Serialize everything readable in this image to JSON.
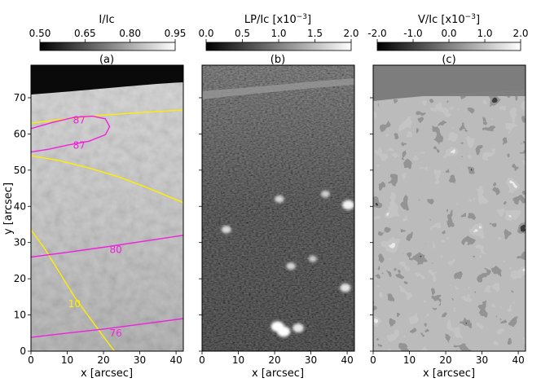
{
  "chart_data": [
    {
      "type": "heatmap",
      "panel_label": "(a)",
      "colorbar": {
        "label": "I/Ic",
        "ticks": [
          "0.50",
          "0.65",
          "0.80",
          "0.95"
        ],
        "range": [
          0.5,
          0.95
        ],
        "cmap": "gray"
      },
      "xlabel": "x [arcsec]",
      "ylabel": "y [arcsec]",
      "xlim": [
        0,
        42
      ],
      "ylim": [
        0,
        79
      ],
      "xticks": [
        0,
        10,
        20,
        30,
        40
      ],
      "yticks": [
        0,
        10,
        20,
        30,
        40,
        50,
        60,
        70
      ],
      "contours": [
        {
          "color": "#ffee00",
          "points": [
            [
              0,
              63
            ],
            [
              10,
              64.2
            ],
            [
              20,
              65.2
            ],
            [
              30,
              65.9
            ],
            [
              42,
              66.6
            ]
          ]
        },
        {
          "color": "#ffee00",
          "points": [
            [
              0,
              54
            ],
            [
              8,
              52.6
            ],
            [
              16,
              50.6
            ],
            [
              24,
              48.2
            ],
            [
              32,
              45.2
            ],
            [
              42,
              41
            ]
          ]
        },
        {
          "color": "#ffee00",
          "points": [
            [
              0,
              33.5
            ],
            [
              4,
              28
            ],
            [
              8,
              21.5
            ],
            [
              12,
              15
            ],
            [
              16,
              9.5
            ],
            [
              20,
              4
            ],
            [
              23,
              0
            ]
          ]
        },
        {
          "color": "#ee22dd",
          "points": [
            [
              0,
              61.5
            ],
            [
              6,
              63.2
            ],
            [
              12,
              64.6
            ],
            [
              17,
              64.9
            ],
            [
              20.5,
              64.2
            ],
            [
              21.7,
              62
            ],
            [
              20.5,
              59.8
            ],
            [
              16,
              58
            ],
            [
              10,
              56.9
            ],
            [
              5,
              55.8
            ],
            [
              0,
              55
            ]
          ]
        },
        {
          "color": "#ee22dd",
          "points": [
            [
              0,
              26
            ],
            [
              10,
              27.3
            ],
            [
              20,
              28.7
            ],
            [
              30,
              30.2
            ],
            [
              42,
              32
            ]
          ]
        },
        {
          "color": "#ee22dd",
          "points": [
            [
              0,
              3.8
            ],
            [
              10,
              5
            ],
            [
              20,
              6.1
            ],
            [
              30,
              7.4
            ],
            [
              42,
              9
            ]
          ]
        }
      ],
      "contour_labels": [
        {
          "text": "87",
          "x": 13.3,
          "y": 63.8,
          "color": "#ee22dd"
        },
        {
          "text": "87",
          "x": 13.3,
          "y": 56.8,
          "color": "#ee22dd"
        },
        {
          "text": "80",
          "x": 23.4,
          "y": 28,
          "color": "#ee22dd"
        },
        {
          "text": "76",
          "x": 23.4,
          "y": 5,
          "color": "#ee22dd"
        },
        {
          "text": "10",
          "x": 12,
          "y": 13,
          "color": "#ffee00"
        }
      ]
    },
    {
      "type": "heatmap",
      "panel_label": "(b)",
      "colorbar": {
        "label": "LP/Ic [x10",
        "label_exp": "−3",
        "label_close": "]",
        "ticks": [
          "0.0",
          "0.5",
          "1.0",
          "1.5",
          "2.0"
        ],
        "range": [
          0.0,
          2.0
        ],
        "cmap": "gray"
      },
      "xlabel": "x [arcsec]",
      "xlim": [
        0,
        42
      ],
      "ylim": [
        0,
        79
      ],
      "xticks": [
        0,
        10,
        20,
        30,
        40
      ],
      "bright_points": [
        {
          "x": 20.8,
          "y": 6.8,
          "v": 2.0
        },
        {
          "x": 22.5,
          "y": 5.4,
          "v": 2.0
        },
        {
          "x": 26.5,
          "y": 6.4,
          "v": 1.6
        },
        {
          "x": 40.3,
          "y": 40.4,
          "v": 1.8
        },
        {
          "x": 39.5,
          "y": 17.5,
          "v": 1.5
        },
        {
          "x": 6.7,
          "y": 33.6,
          "v": 1.3
        },
        {
          "x": 21.3,
          "y": 42,
          "v": 1.2
        },
        {
          "x": 24.5,
          "y": 23.5,
          "v": 1.2
        },
        {
          "x": 30.5,
          "y": 25.5,
          "v": 1.0
        },
        {
          "x": 34,
          "y": 43.4,
          "v": 1.1
        }
      ]
    },
    {
      "type": "heatmap",
      "panel_label": "(c)",
      "colorbar": {
        "label": "V/Ic [x10",
        "label_exp": "−3",
        "label_close": "]",
        "ticks": [
          "-2.0",
          "-1.0",
          "0.0",
          "1.0",
          "2.0"
        ],
        "range": [
          -2.0,
          2.0
        ],
        "cmap": "gray"
      },
      "xlabel": "x [arcsec]",
      "xlim": [
        0,
        42
      ],
      "ylim": [
        0,
        79
      ],
      "xticks": [
        0,
        10,
        20,
        30,
        40
      ]
    }
  ]
}
